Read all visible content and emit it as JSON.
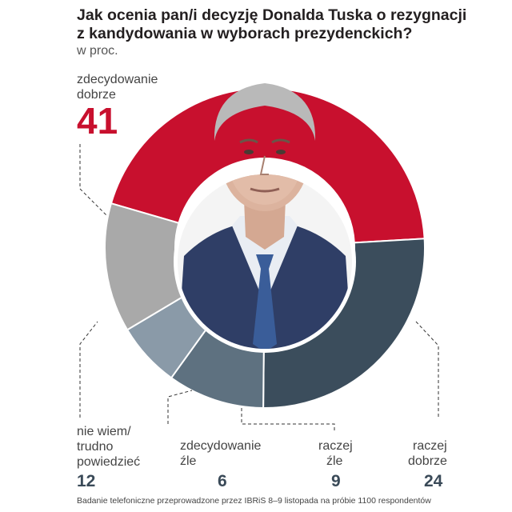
{
  "chart_data": {
    "type": "pie",
    "donut": true,
    "title": "Jak ocenia pan/i decyzję Donalda Tuska o rezygnacji z kandydowania w wyborach prezydenckich?",
    "title_lines": [
      "Jak ocenia pan/i decyzję Donalda Tuska o rezygnacji",
      "z kandydowania w wyborach prezydenckich?"
    ],
    "subtitle": "w proc.",
    "unit": "%",
    "categories": [
      "zdecydowanie dobrze",
      "raczej dobrze",
      "raczej źle",
      "zdecydowanie źle",
      "nie wiem/ trudno powiedzieć"
    ],
    "values": [
      41,
      24,
      9,
      6,
      12
    ],
    "colors": [
      "#c8102e",
      "#3b4d5c",
      "#5e7180",
      "#8a9aa8",
      "#a9a9a9"
    ],
    "labels": {
      "zd_dobrze": [
        "zdecydowanie",
        "dobrze"
      ],
      "raczej_dobrze": [
        "raczej",
        "dobrze"
      ],
      "raczej_zle": [
        "raczej",
        "źle"
      ],
      "zd_zle": [
        "zdecydowanie",
        "źle"
      ],
      "nie_wiem": [
        "nie wiem/",
        "trudno",
        "powiedzieć"
      ]
    },
    "value_labels": [
      "41",
      "24",
      "9",
      "6",
      "12"
    ],
    "source_note": "Badanie telefoniczne przeprowadzone przez IBRiS 8–9 listopada na próbie 1100 respondentów"
  },
  "photo": {
    "subject": "Donald Tusk"
  }
}
